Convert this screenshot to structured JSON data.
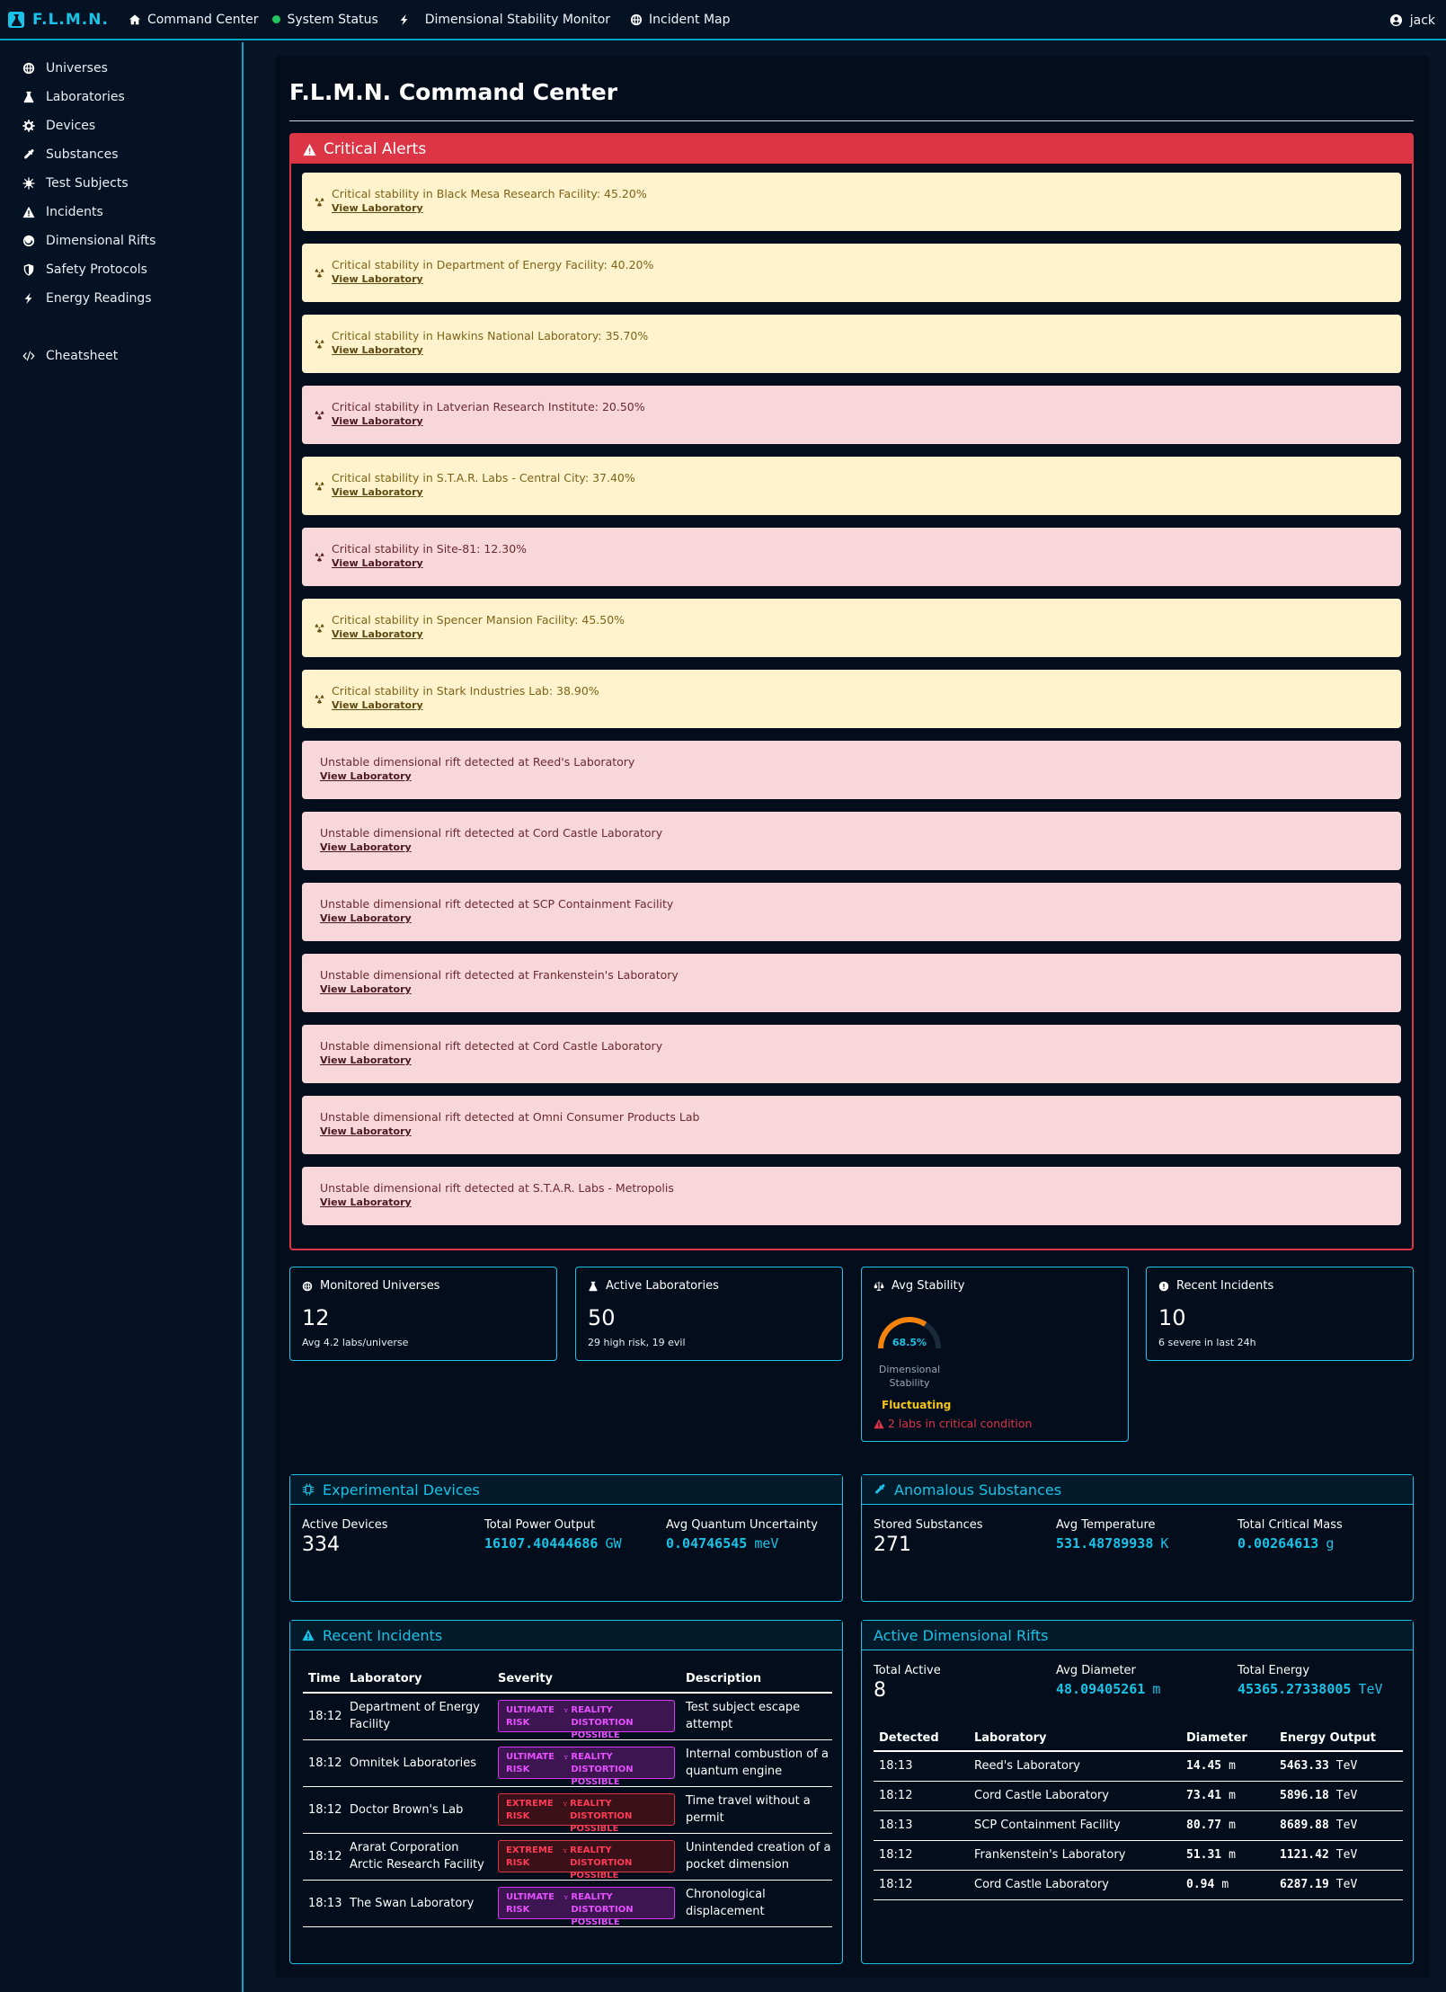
{
  "navbar": {
    "brand": "F.L.M.N.",
    "items": [
      "Command Center",
      "System Status",
      "Dimensional Stability Monitor",
      "Incident Map"
    ],
    "user": "jack"
  },
  "sidebar": {
    "items": [
      "Universes",
      "Laboratories",
      "Devices",
      "Substances",
      "Test Subjects",
      "Incidents",
      "Dimensional Rifts",
      "Safety Protocols",
      "Energy Readings"
    ],
    "extra": "Cheatsheet"
  },
  "page": {
    "title": "F.L.M.N. Command Center"
  },
  "alerts": {
    "header": "Critical Alerts",
    "link_label": "View Laboratory",
    "items": [
      {
        "type": "warning",
        "text": "Critical stability in Black Mesa Research Facility: 45.20%"
      },
      {
        "type": "warning",
        "text": "Critical stability in Department of Energy Facility: 40.20%"
      },
      {
        "type": "warning",
        "text": "Critical stability in Hawkins National Laboratory: 35.70%"
      },
      {
        "type": "danger",
        "text": "Critical stability in Latverian Research Institute: 20.50%"
      },
      {
        "type": "warning",
        "text": "Critical stability in S.T.A.R. Labs - Central City: 37.40%"
      },
      {
        "type": "danger",
        "text": "Critical stability in Site-81: 12.30%"
      },
      {
        "type": "warning",
        "text": "Critical stability in Spencer Mansion Facility: 45.50%"
      },
      {
        "type": "warning",
        "text": "Critical stability in Stark Industries Lab: 38.90%"
      },
      {
        "type": "rift",
        "text": "Unstable dimensional rift detected at Reed's Laboratory"
      },
      {
        "type": "rift",
        "text": "Unstable dimensional rift detected at Cord Castle Laboratory"
      },
      {
        "type": "rift",
        "text": "Unstable dimensional rift detected at SCP Containment Facility"
      },
      {
        "type": "rift",
        "text": "Unstable dimensional rift detected at Frankenstein's Laboratory"
      },
      {
        "type": "rift",
        "text": "Unstable dimensional rift detected at Cord Castle Laboratory"
      },
      {
        "type": "rift",
        "text": "Unstable dimensional rift detected at Omni Consumer Products Lab"
      },
      {
        "type": "rift",
        "text": "Unstable dimensional rift detected at S.T.A.R. Labs - Metropolis"
      }
    ]
  },
  "stats": {
    "universes": {
      "title": "Monitored Universes",
      "value": "12",
      "sub": "Avg 4.2 labs/universe"
    },
    "labs": {
      "title": "Active Laboratories",
      "value": "50",
      "sub": "29 high risk, 19 evil"
    },
    "stability": {
      "title": "Avg Stability",
      "value": "68.5%",
      "percent": 68.5,
      "label": "Dimensional Stability",
      "status": "Fluctuating",
      "critical": "2 labs in critical condition"
    },
    "incidents": {
      "title": "Recent Incidents",
      "value": "10",
      "sub": "6 severe in last 24h"
    }
  },
  "devices": {
    "title": "Experimental Devices",
    "active_label": "Active Devices",
    "active": "334",
    "power_label": "Total Power Output",
    "power": "16107.40444686",
    "power_unit": "GW",
    "uncert_label": "Avg Quantum Uncertainty",
    "uncert": "0.04746545",
    "uncert_unit": "meV"
  },
  "substances": {
    "title": "Anomalous Substances",
    "stored_label": "Stored Substances",
    "stored": "271",
    "temp_label": "Avg Temperature",
    "temp": "531.48789938",
    "temp_unit": "K",
    "mass_label": "Total Critical Mass",
    "mass": "0.00264613",
    "mass_unit": "g"
  },
  "incidents": {
    "title": "Recent Incidents",
    "columns": [
      "Time",
      "Laboratory",
      "Severity",
      "Description"
    ],
    "rows": [
      {
        "time": "18:12",
        "lab": "Department of Energy Facility",
        "level": "ultimate",
        "risk": "ULTIMATE RISK",
        "tag": "REALITY DISTORTION POSSIBLE",
        "desc": "Test subject escape attempt"
      },
      {
        "time": "18:12",
        "lab": "Omnitek Laboratories",
        "level": "ultimate",
        "risk": "ULTIMATE RISK",
        "tag": "REALITY DISTORTION POSSIBLE",
        "desc": "Internal combustion of a quantum engine"
      },
      {
        "time": "18:12",
        "lab": "Doctor Brown's Lab",
        "level": "extreme",
        "risk": "EXTREME RISK",
        "tag": "REALITY DISTORTION POSSIBLE",
        "desc": "Time travel without a permit"
      },
      {
        "time": "18:12",
        "lab": "Ararat Corporation Arctic Research Facility",
        "level": "extreme",
        "risk": "EXTREME RISK",
        "tag": "REALITY DISTORTION POSSIBLE",
        "desc": "Unintended creation of a pocket dimension"
      },
      {
        "time": "18:13",
        "lab": "The Swan Laboratory",
        "level": "ultimate",
        "risk": "ULTIMATE RISK",
        "tag": "REALITY DISTORTION POSSIBLE",
        "desc": "Chronological displacement"
      }
    ]
  },
  "rifts": {
    "title": "Active Dimensional Rifts",
    "active_label": "Total Active",
    "active": "8",
    "diam_label": "Avg Diameter",
    "diam": "48.09405261",
    "diam_unit": "m",
    "energy_label": "Total Energy",
    "energy": "45365.27338005",
    "energy_unit": "TeV",
    "columns": [
      "Detected",
      "Laboratory",
      "Diameter",
      "Energy Output"
    ],
    "rows": [
      {
        "time": "18:13",
        "lab": "Reed's Laboratory",
        "diam": "14.45",
        "diam_unit": "m",
        "energy": "5463.33",
        "energy_unit": "TeV"
      },
      {
        "time": "18:12",
        "lab": "Cord Castle Laboratory",
        "diam": "73.41",
        "diam_unit": "m",
        "energy": "5896.18",
        "energy_unit": "TeV"
      },
      {
        "time": "18:13",
        "lab": "SCP Containment Facility",
        "diam": "80.77",
        "diam_unit": "m",
        "energy": "8689.88",
        "energy_unit": "TeV"
      },
      {
        "time": "18:12",
        "lab": "Frankenstein's Laboratory",
        "diam": "51.31",
        "diam_unit": "m",
        "energy": "1121.42",
        "energy_unit": "TeV"
      },
      {
        "time": "18:12",
        "lab": "Cord Castle Laboratory",
        "diam": "0.94",
        "diam_unit": "m",
        "energy": "6287.19",
        "energy_unit": "TeV"
      }
    ]
  },
  "colors": {
    "accent": "#19c2e6",
    "danger": "#dc3545",
    "warning": "#f5c518",
    "gauge": "#f5820d"
  }
}
